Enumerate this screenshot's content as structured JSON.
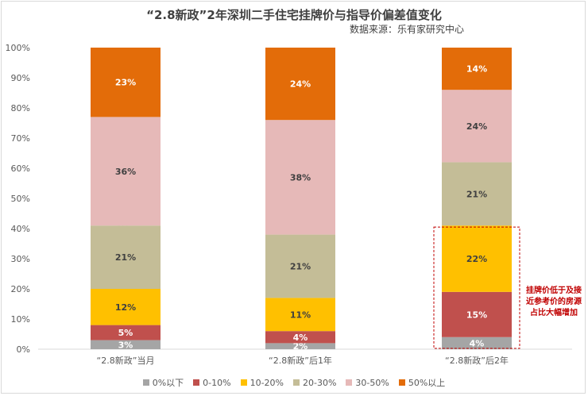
{
  "title": "“2.8新政”2年深圳二手住宅挂牌价与指导价偏差值变化",
  "source": "数据来源：乐有家研究中心",
  "watermark": "乐有家",
  "annotation": "挂牌价低于及接近参考价的房源占比大幅增加",
  "chart_data": {
    "type": "bar",
    "stacked": true,
    "categories": [
      "“2.8新政”当月",
      "“2.8新政”后1年",
      "“2.8新政”后2年"
    ],
    "series": [
      {
        "name": "0%以下",
        "color": "#a5a5a5",
        "values": [
          3,
          2,
          4
        ]
      },
      {
        "name": "0-10%",
        "color": "#c0504d",
        "values": [
          5,
          4,
          15
        ]
      },
      {
        "name": "10-20%",
        "color": "#ffc000",
        "values": [
          12,
          11,
          22
        ]
      },
      {
        "name": "20-30%",
        "color": "#c4bd97",
        "values": [
          21,
          21,
          21
        ]
      },
      {
        "name": "30-50%",
        "color": "#e6b9b8",
        "values": [
          36,
          38,
          24
        ]
      },
      {
        "name": "50%以上",
        "color": "#e36c09",
        "values": [
          23,
          24,
          14
        ]
      }
    ],
    "ylim": [
      0,
      100
    ],
    "yticks": [
      "0%",
      "10%",
      "20%",
      "30%",
      "40%",
      "50%",
      "60%",
      "70%",
      "80%",
      "90%",
      "100%"
    ],
    "legend_position": "bottom",
    "grid": false
  }
}
